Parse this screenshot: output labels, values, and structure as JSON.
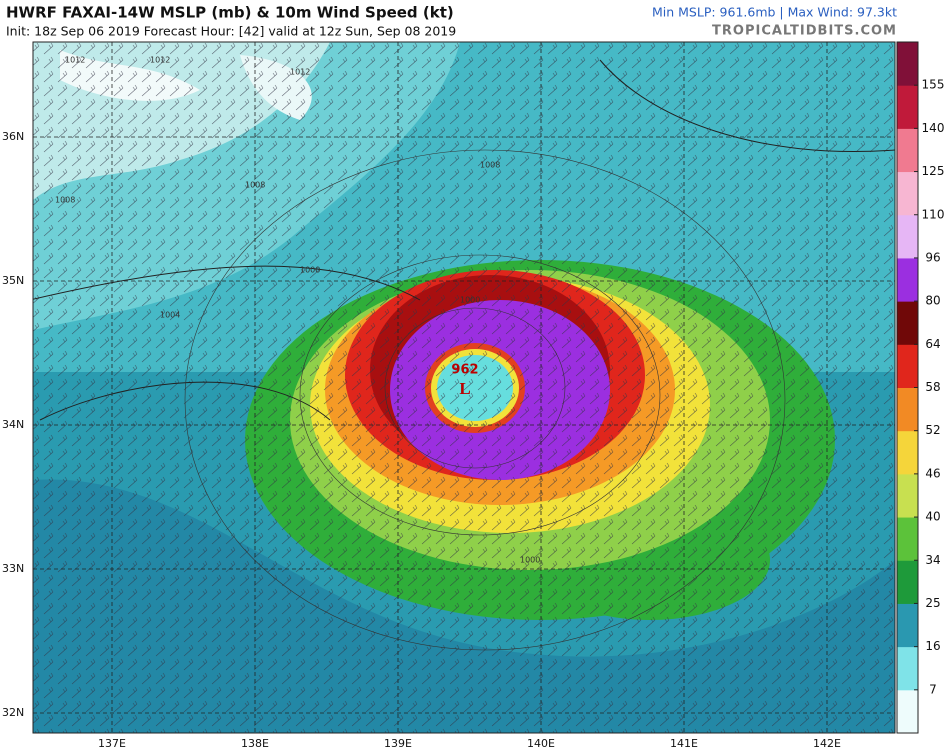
{
  "header": {
    "title": "HWRF FAXAI-14W MSLP (mb) & 10m Wind Speed (kt)",
    "subtitle": "Init: 18z Sep 06 2019   Forecast Hour: [42]   valid at 12z Sun, Sep 08 2019",
    "stats": "Min MSLP: 961.6mb | Max Wind: 97.3kt",
    "site": "TROPICALTIDBITS.COM"
  },
  "map": {
    "center_pressure": "962",
    "low_symbol": "L",
    "latitudes": [
      "36N",
      "35N",
      "34N",
      "33N",
      "32N"
    ],
    "longitudes": [
      "137E",
      "138E",
      "139E",
      "140E",
      "141E",
      "142E"
    ],
    "isobar_labels": [
      "1012",
      "1012",
      "1012",
      "1008",
      "1008",
      "1008",
      "1004",
      "1000",
      "1000",
      "1000"
    ]
  },
  "colorbar": {
    "ticks": [
      7,
      16,
      25,
      34,
      40,
      46,
      52,
      58,
      64,
      80,
      96,
      110,
      125,
      140,
      155
    ]
  }
}
